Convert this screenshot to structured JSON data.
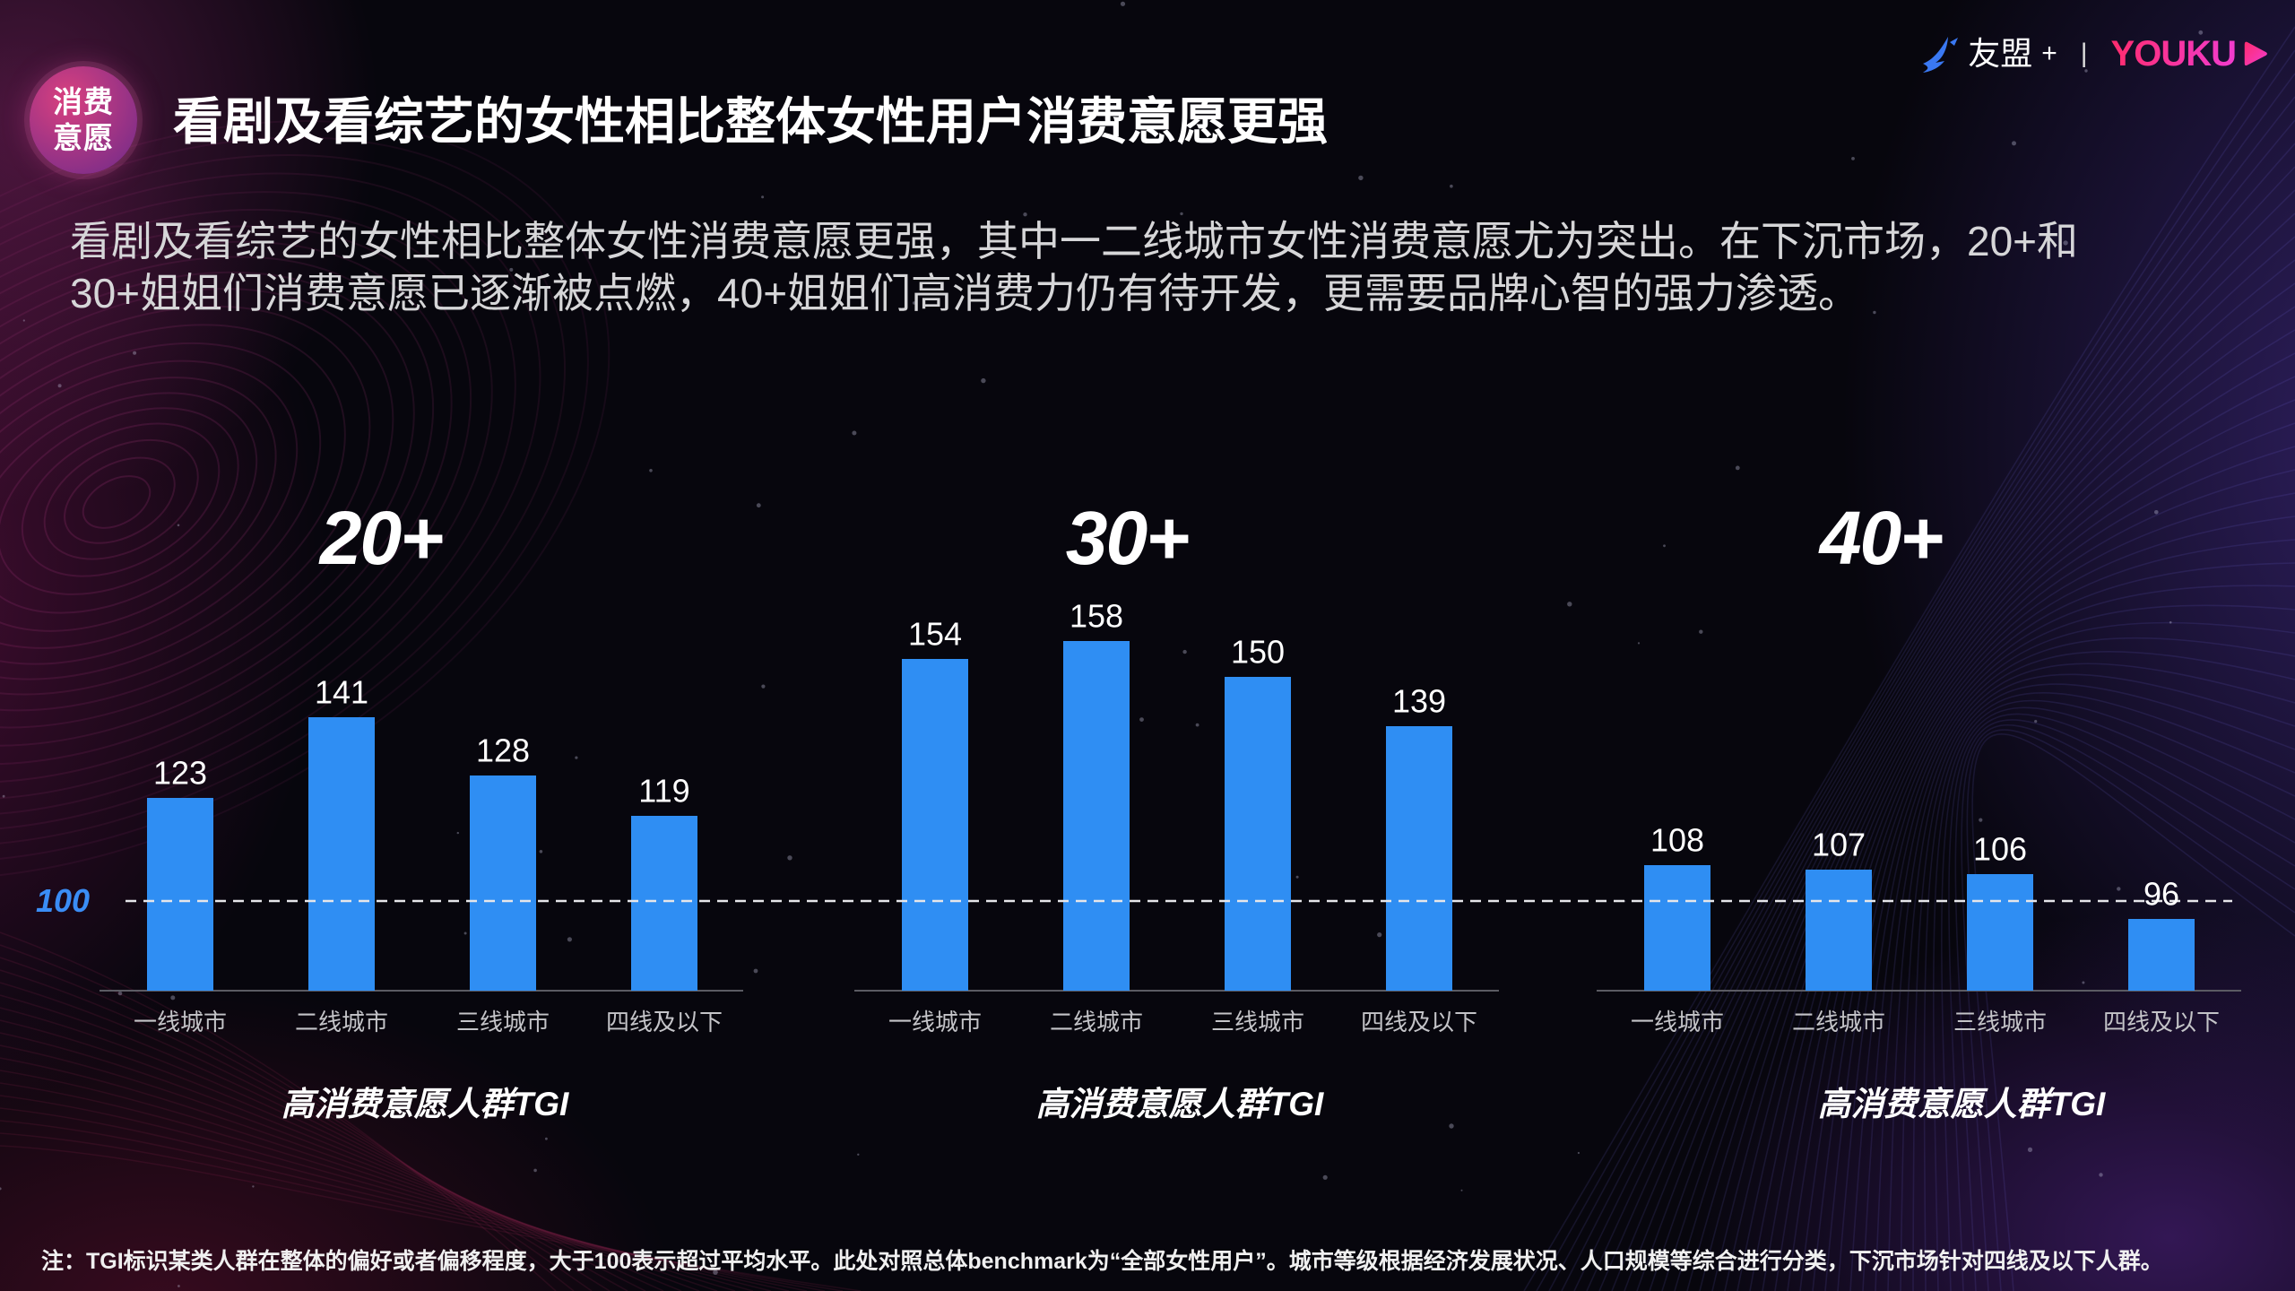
{
  "badge": {
    "line1": "消费",
    "line2": "意愿"
  },
  "title": "看剧及看综艺的女性相比整体女性用户消费意愿更强",
  "logo": {
    "brand_cn": "友盟",
    "plus": "+",
    "separator": "|",
    "brand_en": "YOUKU",
    "icons": {
      "umeng": "umeng-bird-icon",
      "youku": "youku-play-icon"
    }
  },
  "summary": {
    "lines": [
      "看剧及看综艺的女性相比整体女性消费意愿更强，其中一二线城市女性消费意愿尤为突出。在下沉市场，20+和",
      "30+姐姐们消费意愿已逐渐被点燃，40+姐姐们高消费力仍有待开发，更需要品牌心智的强力渗透。"
    ]
  },
  "reference_line": {
    "value": 100,
    "label": "100"
  },
  "chart_data": [
    {
      "type": "bar",
      "title": "20+",
      "categories": [
        "一线城市",
        "二线城市",
        "三线城市",
        "四线及以下"
      ],
      "values": [
        123,
        141,
        128,
        119
      ],
      "xlabel": "高消费意愿人群TGI",
      "ylim": [
        80,
        160
      ],
      "grid": false
    },
    {
      "type": "bar",
      "title": "30+",
      "categories": [
        "一线城市",
        "二线城市",
        "三线城市",
        "四线及以下"
      ],
      "values": [
        154,
        158,
        150,
        139
      ],
      "xlabel": "高消费意愿人群TGI",
      "ylim": [
        80,
        160
      ],
      "grid": false
    },
    {
      "type": "bar",
      "title": "40+",
      "categories": [
        "一线城市",
        "二线城市",
        "三线城市",
        "四线及以下"
      ],
      "values": [
        108,
        107,
        106,
        96
      ],
      "xlabel": "高消费意愿人群TGI",
      "ylim": [
        80,
        160
      ],
      "grid": false
    }
  ],
  "footnote": "注：TGI标识某类人群在整体的偏好或者偏移程度，大于100表示超过平均水平。此处对照总体benchmark为“全部女性用户”。城市等级根据经济发展状况、人口规模等综合进行分类，下沉市场针对四线及以下人群。",
  "colors": {
    "bar": "#2f8ef3",
    "reference_label": "#3a8df5",
    "badge_from": "#d9407f",
    "badge_to": "#6d2a8a",
    "youku_from": "#ff2c6e",
    "youku_to": "#f23ccf",
    "umeng_icon": "#3a78f2"
  }
}
